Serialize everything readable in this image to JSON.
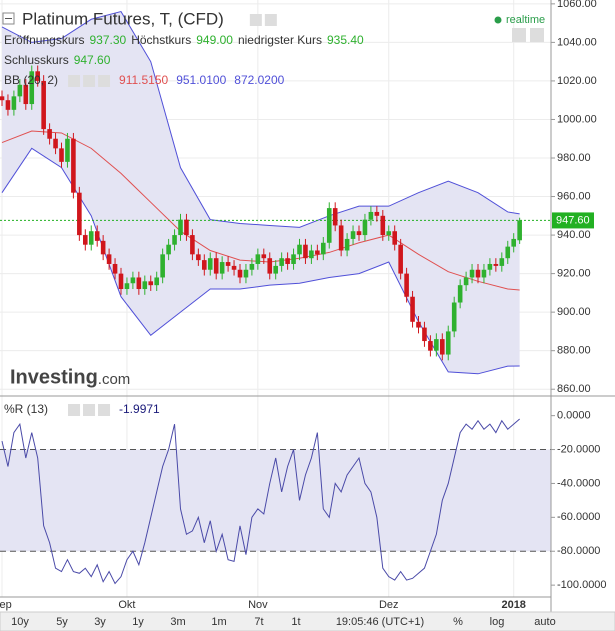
{
  "header": {
    "title": "Platinum Futures, T, (CFD)",
    "realtime": "realtime",
    "open_label": "Eröffnungskurs",
    "open": "937.30",
    "high_label": "Höchstkurs",
    "high": "949.00",
    "low_label": "niedrigster Kurs",
    "low": "935.40",
    "close_label": "Schlusskurs",
    "close": "947.60"
  },
  "logo": {
    "name": "Investing",
    "suffix": ".com"
  },
  "toolbar": {
    "ranges": [
      "10y",
      "5y",
      "3y",
      "1y",
      "3m",
      "1m",
      "7t",
      "1t"
    ],
    "time": "19:05:46 (UTC+1)",
    "options": [
      "%",
      "log",
      "auto"
    ]
  },
  "chart_data": [
    {
      "type": "candlestick",
      "categories": [
        "Sep",
        null,
        null,
        null,
        null,
        null,
        null,
        null,
        null,
        null,
        null,
        null,
        null,
        null,
        null,
        null,
        null,
        null,
        null,
        null,
        null,
        "Okt",
        null,
        null,
        null,
        null,
        null,
        null,
        null,
        null,
        null,
        null,
        null,
        null,
        null,
        null,
        null,
        null,
        null,
        null,
        null,
        null,
        null,
        "Nov",
        null,
        null,
        null,
        null,
        null,
        null,
        null,
        null,
        null,
        null,
        null,
        null,
        null,
        null,
        null,
        null,
        null,
        null,
        null,
        null,
        null,
        "Dez",
        null,
        null,
        null,
        null,
        null,
        null,
        null,
        null,
        null,
        null,
        null,
        null,
        null,
        null,
        null,
        null,
        null,
        null,
        null,
        null,
        "2018",
        null
      ],
      "open": [
        1012,
        1010,
        1005,
        1012,
        1018,
        1008,
        1025,
        1020,
        995,
        990,
        985,
        978,
        990,
        962,
        940,
        935,
        942,
        937,
        930,
        925,
        920,
        912,
        915,
        918,
        912,
        916,
        914,
        918,
        930,
        935,
        940,
        948,
        940,
        930,
        927,
        922,
        928,
        920,
        926,
        924,
        922,
        918,
        922,
        925,
        930,
        928,
        920,
        924,
        928,
        925,
        930,
        935,
        928,
        932,
        930,
        936,
        954,
        945,
        932,
        938,
        942,
        940,
        948,
        952,
        950,
        940,
        942,
        935,
        920,
        908,
        895,
        892,
        885,
        880,
        886,
        878,
        890,
        905,
        914,
        918,
        922,
        918,
        922,
        925,
        924,
        928,
        934,
        937.3
      ],
      "high": [
        1015,
        1013,
        1015,
        1021,
        1021,
        1028,
        1028,
        1023,
        998,
        993,
        988,
        993,
        993,
        965,
        943,
        945,
        945,
        940,
        933,
        928,
        923,
        918,
        921,
        921,
        919,
        919,
        921,
        933,
        938,
        943,
        951,
        951,
        943,
        933,
        930,
        931,
        931,
        929,
        929,
        927,
        925,
        925,
        928,
        933,
        933,
        931,
        927,
        931,
        931,
        933,
        938,
        938,
        935,
        935,
        939,
        957,
        957,
        948,
        941,
        945,
        945,
        951,
        955,
        955,
        953,
        945,
        945,
        938,
        923,
        911,
        898,
        895,
        888,
        889,
        889,
        893,
        908,
        917,
        921,
        925,
        925,
        925,
        928,
        928,
        931,
        937,
        941,
        949
      ],
      "low": [
        1007,
        1002,
        1002,
        1009,
        1005,
        1005,
        1017,
        992,
        987,
        982,
        975,
        975,
        959,
        937,
        932,
        932,
        934,
        927,
        922,
        917,
        909,
        909,
        912,
        909,
        909,
        911,
        911,
        915,
        927,
        932,
        937,
        937,
        927,
        924,
        919,
        919,
        917,
        917,
        921,
        919,
        915,
        915,
        919,
        922,
        925,
        917,
        917,
        921,
        922,
        922,
        927,
        925,
        925,
        927,
        927,
        933,
        942,
        929,
        929,
        935,
        937,
        937,
        945,
        947,
        937,
        937,
        932,
        917,
        905,
        892,
        889,
        882,
        877,
        877,
        875,
        875,
        887,
        902,
        911,
        915,
        915,
        915,
        919,
        921,
        921,
        925,
        931,
        935.4
      ],
      "close": [
        1010,
        1005,
        1012,
        1018,
        1008,
        1025,
        1020,
        995,
        990,
        985,
        978,
        990,
        962,
        940,
        935,
        942,
        937,
        930,
        925,
        920,
        912,
        915,
        918,
        912,
        916,
        914,
        918,
        930,
        935,
        940,
        948,
        940,
        930,
        927,
        922,
        928,
        920,
        926,
        924,
        922,
        918,
        922,
        925,
        930,
        928,
        920,
        924,
        928,
        925,
        930,
        935,
        928,
        932,
        930,
        936,
        954,
        945,
        932,
        938,
        942,
        940,
        948,
        952,
        950,
        940,
        942,
        935,
        920,
        908,
        895,
        892,
        885,
        880,
        886,
        878,
        890,
        905,
        914,
        918,
        922,
        918,
        922,
        925,
        924,
        928,
        934,
        938,
        947.6
      ],
      "up_color": "#2fb12f",
      "down_color": "#d0161c",
      "ylim": [
        857,
        1062
      ],
      "yticks": [
        {
          "value": 1060,
          "label": "1060.00"
        },
        {
          "value": 1040,
          "label": "1040.00"
        },
        {
          "value": 1020,
          "label": "1020.00"
        },
        {
          "value": 1000,
          "label": "1000.00"
        },
        {
          "value": 980,
          "label": "980.00"
        },
        {
          "value": 960,
          "label": "960.00"
        },
        {
          "value": 940,
          "label": "940.00"
        },
        {
          "value": 920,
          "label": "920.00"
        },
        {
          "value": 900,
          "label": "900.00"
        },
        {
          "value": 880,
          "label": "880.00"
        },
        {
          "value": 860,
          "label": "860.00"
        }
      ],
      "grid": true,
      "last_price": {
        "value": 947.6,
        "label": "947.60",
        "color": "#22b022"
      },
      "bb": {
        "name": "BB (20, 2)",
        "fill": "#e4e4f3",
        "x": [
          0,
          5,
          10,
          15,
          20,
          25,
          30,
          35,
          40,
          45,
          50,
          55,
          60,
          65,
          70,
          75,
          80,
          85,
          87
        ],
        "mid": {
          "label": "911.5150",
          "color": "#e05050",
          "values": [
            988,
            994,
            993,
            985,
            972,
            957,
            942,
            932,
            927,
            926,
            928,
            931,
            936,
            940,
            930,
            921,
            916,
            912,
            911.515
          ]
        },
        "upper": {
          "label": "951.0100",
          "color": "#5050d8",
          "values": [
            1048,
            1040,
            1042,
            1052,
            1056,
            1030,
            975,
            948,
            946,
            945,
            944,
            950,
            955,
            955,
            962,
            968,
            962,
            952,
            951.01
          ]
        },
        "lower": {
          "label": "872.0200",
          "color": "#5050d8",
          "values": [
            962,
            985,
            975,
            950,
            908,
            888,
            900,
            912,
            912,
            914,
            915,
            918,
            920,
            926,
            895,
            869,
            868,
            872,
            872.02
          ]
        }
      }
    },
    {
      "type": "line",
      "title": "%R (13)",
      "value_label": "-1.9971",
      "color": "#4a4aa8",
      "band_fill": "#e4e4f3",
      "values": [
        -15,
        -30,
        -10,
        -5,
        -25,
        -10,
        -25,
        -65,
        -75,
        -90,
        -92,
        -85,
        -92,
        -93,
        -90,
        -95,
        -88,
        -98,
        -92,
        -99,
        -95,
        -85,
        -80,
        -88,
        -75,
        -60,
        -45,
        -30,
        -20,
        -5,
        -55,
        -70,
        -68,
        -60,
        -75,
        -62,
        -80,
        -70,
        -85,
        -86,
        -65,
        -82,
        -60,
        -55,
        -58,
        -40,
        -25,
        -45,
        -30,
        -20,
        -50,
        -35,
        -25,
        -10,
        -55,
        -60,
        -40,
        -45,
        -35,
        -30,
        -25,
        -40,
        -45,
        -60,
        -90,
        -95,
        -97,
        -92,
        -97,
        -96,
        -93,
        -90,
        -80,
        -70,
        -50,
        -40,
        -25,
        -10,
        -5,
        -8,
        -3,
        -8,
        -5,
        -10,
        -3,
        -8,
        -5,
        -1.9971
      ],
      "ylim": [
        -107,
        11
      ],
      "yticks": [
        {
          "value": 0,
          "label": "0.0000"
        },
        {
          "value": -20,
          "label": "-20.0000"
        },
        {
          "value": -40,
          "label": "-40.0000"
        },
        {
          "value": -60,
          "label": "-60.0000"
        },
        {
          "value": -80,
          "label": "-80.0000"
        },
        {
          "value": -100,
          "label": "-100.0000"
        }
      ],
      "levels": [
        -20,
        -80
      ]
    }
  ]
}
